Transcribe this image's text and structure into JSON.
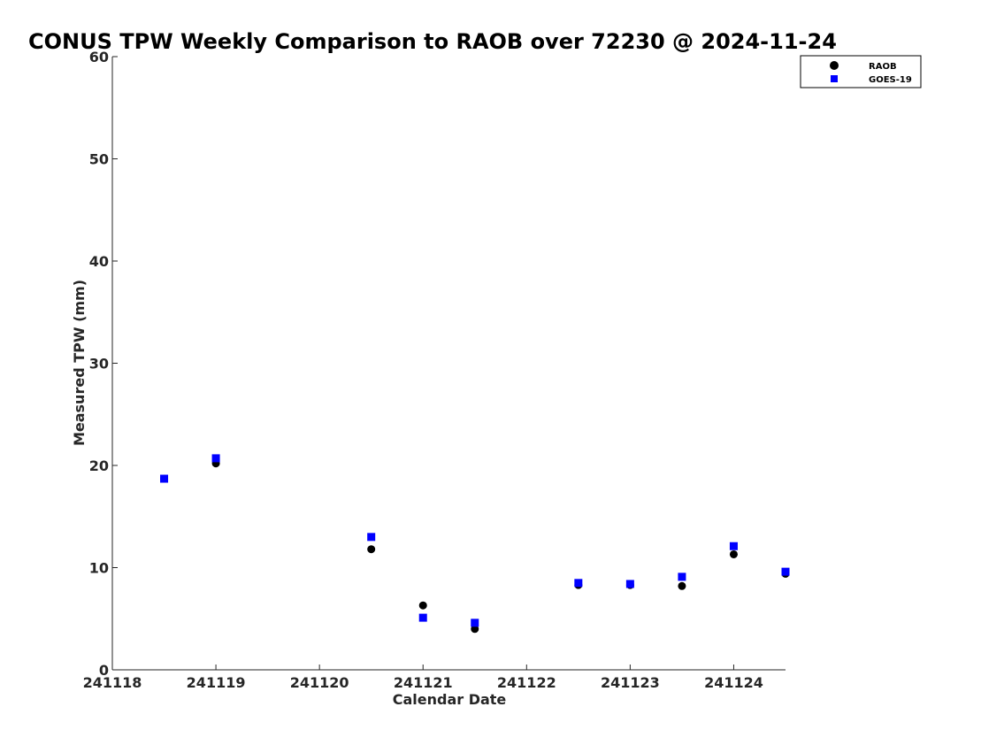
{
  "chart_data": {
    "type": "scatter",
    "title": "CONUS TPW Weekly Comparison to RAOB over 72230 @ 2024-11-24",
    "xlabel": "Calendar Date",
    "ylabel": "Measured TPW (mm)",
    "xlim": [
      241118,
      241124.5
    ],
    "ylim": [
      0,
      60
    ],
    "x_ticks": [
      241118,
      241119,
      241120,
      241121,
      241122,
      241123,
      241124
    ],
    "x_tick_labels": [
      "241118",
      "241119",
      "241120",
      "241121",
      "241122",
      "241123",
      "241124"
    ],
    "y_ticks": [
      0,
      10,
      20,
      30,
      40,
      50,
      60
    ],
    "y_tick_labels": [
      "0",
      "10",
      "20",
      "30",
      "40",
      "50",
      "60"
    ],
    "grid": false,
    "legend_position": "top-right",
    "series": [
      {
        "name": "RAOB",
        "marker": "circle",
        "color": "#000000",
        "x": [
          241118.5,
          241119,
          241120.5,
          241121,
          241121.5,
          241122.5,
          241123,
          241123.5,
          241124,
          241124.5
        ],
        "y": [
          18.7,
          20.2,
          11.8,
          6.3,
          4.0,
          8.3,
          8.3,
          8.2,
          11.3,
          9.4
        ]
      },
      {
        "name": "GOES-19",
        "marker": "square",
        "color": "#0000ff",
        "x": [
          241118.5,
          241119,
          241120.5,
          241121,
          241121.5,
          241122.5,
          241123,
          241123.5,
          241124,
          241124.5
        ],
        "y": [
          18.7,
          20.7,
          13.0,
          5.1,
          4.6,
          8.5,
          8.4,
          9.1,
          12.1,
          9.6
        ]
      }
    ]
  }
}
